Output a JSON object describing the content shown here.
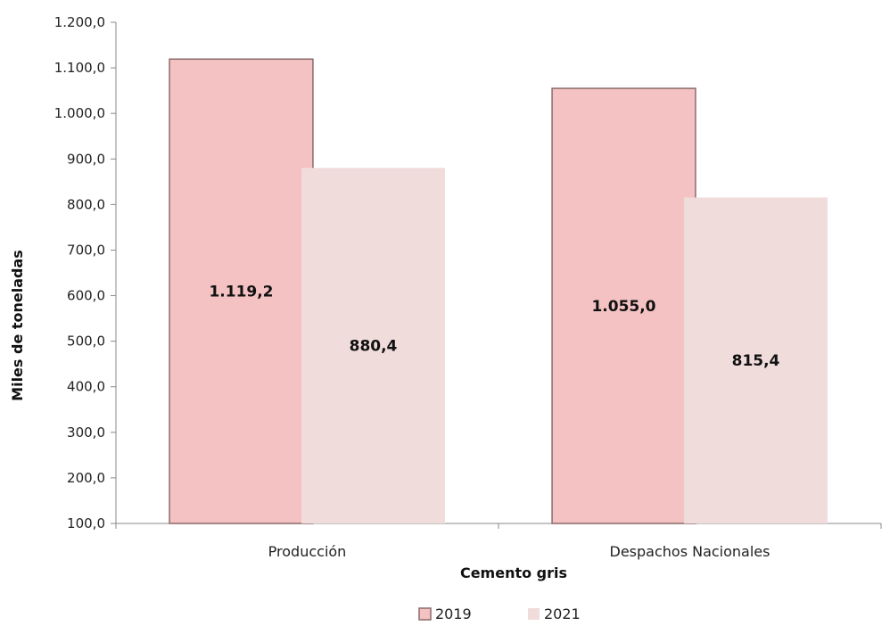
{
  "chart_data": {
    "type": "bar",
    "categories": [
      "Producción",
      "Despachos Nacionales"
    ],
    "series": [
      {
        "name": "2019",
        "values": [
          1119.2,
          1055.0
        ],
        "labels": [
          "1.119,2",
          "1.055,0"
        ],
        "color": "#f4c2c2",
        "edge": "#8c6a6a"
      },
      {
        "name": "2021",
        "values": [
          880.4,
          815.4
        ],
        "labels": [
          "880,4",
          "815,4"
        ],
        "color": "#f1dcdc"
      }
    ],
    "xlabel": "Cemento gris",
    "ylabel": "Miles de toneladas",
    "ylim": [
      100,
      1200
    ],
    "yticks": [
      100,
      200,
      300,
      400,
      500,
      600,
      700,
      800,
      900,
      1000,
      1100,
      1200
    ],
    "ytick_labels": [
      "100,0",
      "200,0",
      "300,0",
      "400,0",
      "500,0",
      "600,0",
      "700,0",
      "800,0",
      "900,0",
      "1.000,0",
      "1.100,0",
      "1.200,0"
    ],
    "grid": false,
    "legend": "bottom-center"
  }
}
